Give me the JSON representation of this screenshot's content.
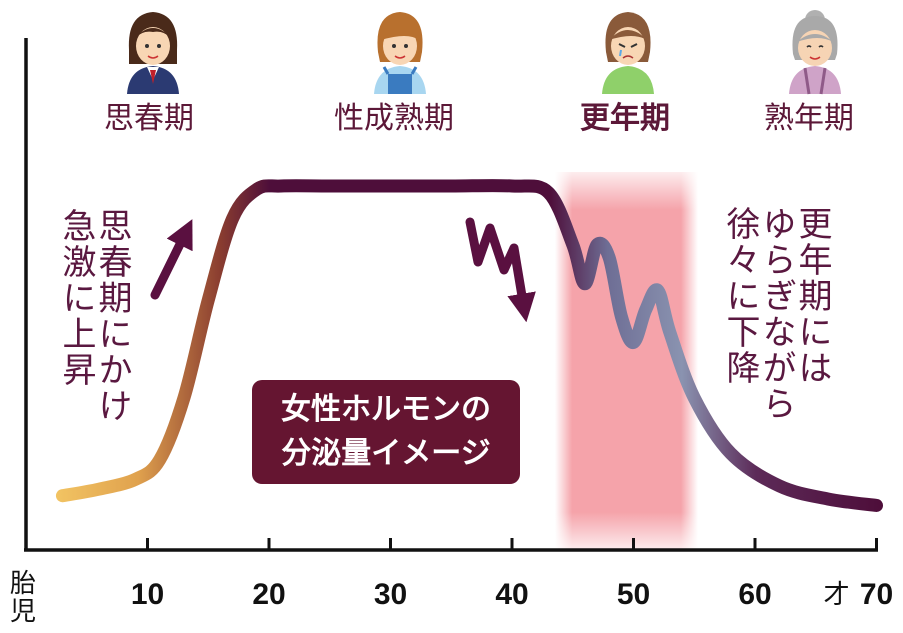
{
  "chart_data": {
    "type": "line",
    "title": "女性ホルモンの分泌量イメージ",
    "title_lines": [
      "女性ホルモンの",
      "分泌量イメージ"
    ],
    "x_unit": "才",
    "x_origin_label": "胎児",
    "x_ticks": [
      10,
      20,
      30,
      40,
      50,
      60,
      70
    ],
    "xlim": [
      0,
      70
    ],
    "highlight_range": [
      45,
      55
    ],
    "series": [
      {
        "x": [
          3,
          6,
          9,
          11,
          13,
          15,
          17,
          19,
          21,
          25,
          30,
          35,
          40,
          43,
          45,
          46,
          47,
          48,
          49,
          50,
          51,
          52,
          53,
          55,
          58,
          62,
          66,
          70
        ],
        "values": [
          0.05,
          0.07,
          0.1,
          0.16,
          0.35,
          0.65,
          0.9,
          0.99,
          1.0,
          1.0,
          1.0,
          1.0,
          1.0,
          0.98,
          0.82,
          0.7,
          0.82,
          0.78,
          0.6,
          0.52,
          0.62,
          0.68,
          0.55,
          0.35,
          0.18,
          0.08,
          0.04,
          0.02
        ]
      }
    ],
    "stages": [
      {
        "label": "思春期",
        "bold": false
      },
      {
        "label": "性成熟期",
        "bold": false
      },
      {
        "label": "更年期",
        "bold": true
      },
      {
        "label": "熟年期",
        "bold": false
      }
    ],
    "annotations": {
      "rise": [
        "思春期にかけ",
        "急激に上昇"
      ],
      "decline": [
        "更年期には",
        "ゆらぎながら",
        "徐々に下降"
      ]
    },
    "colors": {
      "curve_start": "#f0be58",
      "curve_mid": "#4e0e3a",
      "curve_fluctuation": "#7e8aa8",
      "highlight": "#f5a3aa",
      "title_box": "#651531",
      "arrow": "#5a1040",
      "axis": "#111111"
    }
  },
  "icons": [
    "girl-student-avatar",
    "woman-apron-avatar",
    "tearful-woman-avatar",
    "elderly-woman-avatar"
  ]
}
